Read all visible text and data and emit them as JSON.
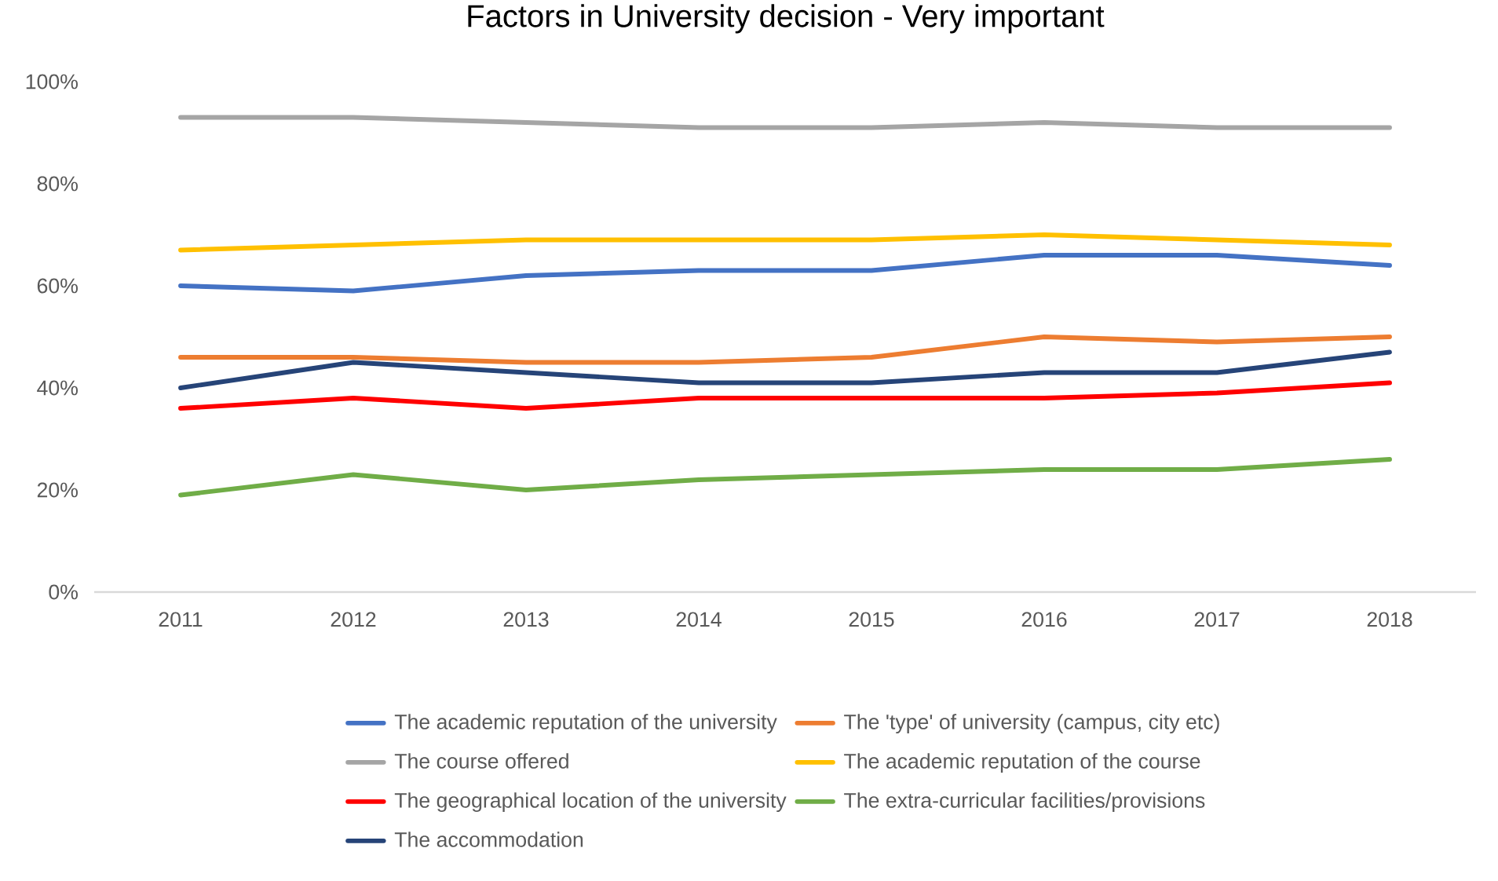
{
  "chart_data": {
    "type": "line",
    "title": "Factors in University decision - Very important",
    "categories": [
      "2011",
      "2012",
      "2013",
      "2014",
      "2015",
      "2016",
      "2017",
      "2018"
    ],
    "ylim": [
      0,
      100
    ],
    "yticks": [
      {
        "value": 0,
        "label": "0%"
      },
      {
        "value": 20,
        "label": "20%"
      },
      {
        "value": 40,
        "label": "40%"
      },
      {
        "value": 60,
        "label": "60%"
      },
      {
        "value": 80,
        "label": "80%"
      },
      {
        "value": 100,
        "label": "100%"
      }
    ],
    "grid": false,
    "legend": "bottom",
    "marker": "none",
    "line_style": "solid",
    "series": [
      {
        "name": "The academic reputation of the university",
        "color": "#4472c4",
        "values": [
          60,
          59,
          62,
          63,
          63,
          66,
          66,
          64
        ]
      },
      {
        "name": "The 'type' of university (campus, city etc)",
        "color": "#ed7d31",
        "values": [
          46,
          46,
          45,
          45,
          46,
          50,
          49,
          50
        ]
      },
      {
        "name": "The course offered",
        "color": "#a5a5a5",
        "values": [
          93,
          93,
          92,
          91,
          91,
          92,
          91,
          91
        ]
      },
      {
        "name": "The academic reputation of the course",
        "color": "#ffc000",
        "values": [
          67,
          68,
          69,
          69,
          69,
          70,
          69,
          68
        ]
      },
      {
        "name": "The geographical location of the university",
        "color": "#ff0000",
        "values": [
          36,
          38,
          36,
          38,
          38,
          38,
          39,
          41
        ]
      },
      {
        "name": "The extra-curricular facilities/provisions",
        "color": "#70ad47",
        "values": [
          19,
          23,
          20,
          22,
          23,
          24,
          24,
          26
        ]
      },
      {
        "name": "The accommodation",
        "color": "#264478",
        "values": [
          40,
          45,
          43,
          41,
          41,
          43,
          43,
          47
        ]
      }
    ]
  }
}
